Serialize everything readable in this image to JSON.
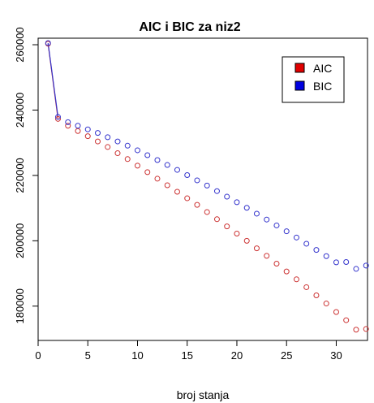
{
  "chart_data": {
    "type": "scatter",
    "title": "AIC i BIC za niz2",
    "xlabel": "broj stanja",
    "ylabel": "",
    "xlim": [
      0,
      33.8
    ],
    "ylim": [
      169500,
      262000
    ],
    "x_ticks": [
      0,
      5,
      10,
      15,
      20,
      25,
      30
    ],
    "y_ticks": [
      180000,
      200000,
      220000,
      240000,
      260000
    ],
    "x_tick_labels": [
      "0",
      "5",
      "10",
      "15",
      "20",
      "25",
      "30"
    ],
    "y_tick_labels": [
      "180000",
      "200000",
      "220000",
      "240000",
      "260000"
    ],
    "grid": false,
    "legend_position": "top-right",
    "connected_points": [
      1,
      2
    ],
    "series": [
      {
        "name": "AIC",
        "color": "#e00000",
        "point_color": "#cc3333",
        "x": [
          1,
          2,
          3,
          4,
          5,
          6,
          7,
          8,
          9,
          10,
          11,
          12,
          13,
          14,
          15,
          16,
          17,
          18,
          19,
          20,
          21,
          22,
          23,
          24,
          25,
          26,
          27,
          28,
          29,
          30,
          31,
          32,
          33
        ],
        "values": [
          260300,
          237300,
          235200,
          233600,
          232000,
          230400,
          228700,
          226800,
          225000,
          223000,
          221000,
          219000,
          217000,
          215000,
          213000,
          211000,
          208800,
          206600,
          204400,
          202200,
          200000,
          197700,
          195400,
          193000,
          190600,
          188200,
          185800,
          183300,
          180800,
          178200,
          175700,
          172800,
          173000
        ]
      },
      {
        "name": "BIC",
        "color": "#0000e0",
        "point_color": "#3333cc",
        "x": [
          1,
          2,
          3,
          4,
          5,
          6,
          7,
          8,
          9,
          10,
          11,
          12,
          13,
          14,
          15,
          16,
          17,
          18,
          19,
          20,
          21,
          22,
          23,
          24,
          25,
          26,
          27,
          28,
          29,
          30,
          31,
          32,
          33
        ],
        "values": [
          260500,
          237900,
          236300,
          235200,
          234100,
          233000,
          231700,
          230400,
          229100,
          227700,
          226200,
          224700,
          223200,
          221700,
          220100,
          218500,
          216900,
          215200,
          213500,
          211800,
          210100,
          208300,
          206500,
          204700,
          202900,
          201000,
          199100,
          197200,
          195300,
          193400,
          193500,
          191400,
          192400
        ]
      }
    ]
  }
}
